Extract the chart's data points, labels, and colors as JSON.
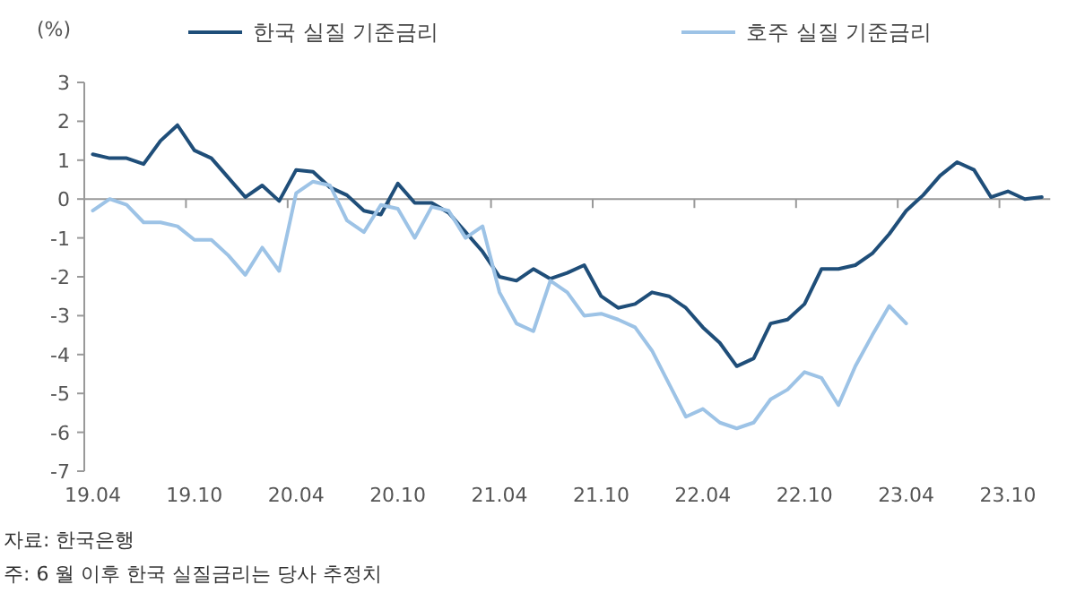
{
  "chart_data": {
    "type": "line",
    "ylabel": "(%)",
    "legend": "top",
    "categories": [
      "19.04",
      null,
      null,
      null,
      null,
      null,
      "19.10",
      null,
      null,
      null,
      null,
      null,
      "20.04",
      null,
      null,
      null,
      null,
      null,
      "20.10",
      null,
      null,
      null,
      null,
      null,
      "21.04",
      null,
      null,
      null,
      null,
      null,
      "21.10",
      null,
      null,
      null,
      null,
      null,
      "22.04",
      null,
      null,
      null,
      null,
      null,
      "22.10",
      null,
      null,
      null,
      null,
      null,
      "23.04",
      null,
      null,
      null,
      null,
      null,
      "23.10",
      null,
      null
    ],
    "ylim": [
      -7,
      3
    ],
    "yticks": [
      -7,
      -6,
      -5,
      -4,
      -3,
      -2,
      -1,
      0,
      1,
      2,
      3
    ],
    "series": [
      {
        "name": "한국 실질 기준금리",
        "color": "#1f4e79",
        "values": [
          1.15,
          1.05,
          1.05,
          0.9,
          1.5,
          1.9,
          1.25,
          1.05,
          0.55,
          0.05,
          0.35,
          -0.05,
          0.75,
          0.7,
          0.3,
          0.1,
          -0.3,
          -0.4,
          0.4,
          -0.1,
          -0.1,
          -0.35,
          -0.85,
          -1.35,
          -2.0,
          -2.1,
          -1.8,
          -2.05,
          -1.9,
          -1.7,
          -2.5,
          -2.8,
          -2.7,
          -2.4,
          -2.5,
          -2.8,
          -3.3,
          -3.7,
          -4.3,
          -4.1,
          -3.2,
          -3.1,
          -2.7,
          -1.8,
          -1.8,
          -1.7,
          -1.4,
          -0.9,
          -0.3,
          0.1,
          0.6,
          0.95,
          0.75,
          0.05,
          0.2,
          0.0,
          0.05
        ]
      },
      {
        "name": "호주 실질 기준금리",
        "color": "#9dc3e6",
        "values": [
          -0.3,
          0.0,
          -0.15,
          -0.6,
          -0.6,
          -0.7,
          -1.05,
          -1.05,
          -1.45,
          -1.95,
          -1.25,
          -1.85,
          0.15,
          0.45,
          0.35,
          -0.55,
          -0.85,
          -0.15,
          -0.25,
          -1.0,
          -0.2,
          -0.3,
          -1.0,
          -0.7,
          -2.4,
          -3.2,
          -3.4,
          -2.1,
          -2.4,
          -3.0,
          -2.95,
          -3.1,
          -3.3,
          -3.9,
          -4.75,
          -5.6,
          -5.4,
          -5.75,
          -5.9,
          -5.75,
          -5.15,
          -4.9,
          -4.45,
          -4.6,
          -5.3,
          -4.3,
          -3.5,
          -2.75,
          -3.2,
          null,
          null,
          null,
          null,
          null,
          null,
          null,
          null
        ]
      }
    ],
    "annotations": [
      "자료: 한국은행",
      "주: 6 월 이후 한국 실질금리는 당사 추정치"
    ]
  }
}
